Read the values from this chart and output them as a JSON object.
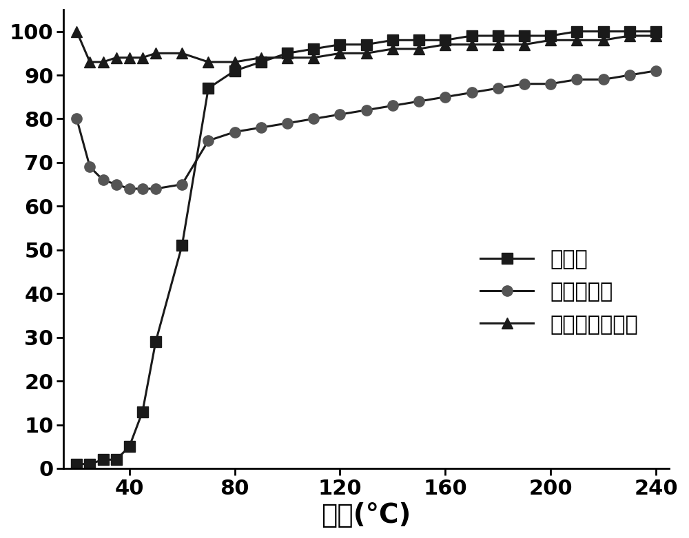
{
  "conversion_x": [
    20,
    25,
    30,
    35,
    40,
    45,
    50,
    60,
    70,
    80,
    90,
    100,
    110,
    120,
    130,
    140,
    150,
    160,
    170,
    180,
    190,
    200,
    210,
    220,
    230,
    240
  ],
  "conversion_y": [
    1,
    1,
    2,
    2,
    5,
    13,
    29,
    51,
    87,
    91,
    93,
    95,
    96,
    97,
    97,
    98,
    98,
    98,
    99,
    99,
    99,
    99,
    100,
    100,
    100,
    100
  ],
  "ethylene_sel_x": [
    20,
    25,
    30,
    35,
    40,
    45,
    50,
    60,
    70,
    80,
    90,
    100,
    110,
    120,
    130,
    140,
    150,
    160,
    170,
    180,
    190,
    200,
    210,
    220,
    230,
    240
  ],
  "ethylene_sel_y": [
    80,
    69,
    66,
    65,
    64,
    64,
    64,
    65,
    75,
    77,
    78,
    79,
    80,
    81,
    82,
    83,
    84,
    85,
    86,
    87,
    88,
    88,
    89,
    89,
    90,
    91
  ],
  "gas_sel_x": [
    20,
    25,
    30,
    35,
    40,
    45,
    50,
    60,
    70,
    80,
    90,
    100,
    110,
    120,
    130,
    140,
    150,
    160,
    170,
    180,
    190,
    200,
    210,
    220,
    230,
    240
  ],
  "gas_sel_y": [
    100,
    93,
    93,
    94,
    94,
    94,
    95,
    95,
    93,
    93,
    94,
    94,
    94,
    95,
    95,
    96,
    96,
    97,
    97,
    97,
    97,
    98,
    98,
    98,
    99,
    99
  ],
  "line_color": "#1a1a1a",
  "marker_square_color": "#1a1a1a",
  "marker_circle_color": "#555555",
  "marker_triangle_color": "#1a1a1a",
  "legend_labels": [
    "转化率",
    "乙烯选择性",
    "乙烯气相选择性"
  ],
  "xlabel": "温度(°C)",
  "ylabel": "",
  "xlim": [
    15,
    245
  ],
  "ylim": [
    0,
    105
  ],
  "xticks": [
    40,
    80,
    120,
    160,
    200,
    240
  ],
  "yticks": [
    0,
    10,
    20,
    30,
    40,
    50,
    60,
    70,
    80,
    90,
    100
  ],
  "xlabel_fontsize": 28,
  "tick_fontsize": 22,
  "legend_fontsize": 22,
  "marker_size": 11,
  "line_width": 2.2
}
